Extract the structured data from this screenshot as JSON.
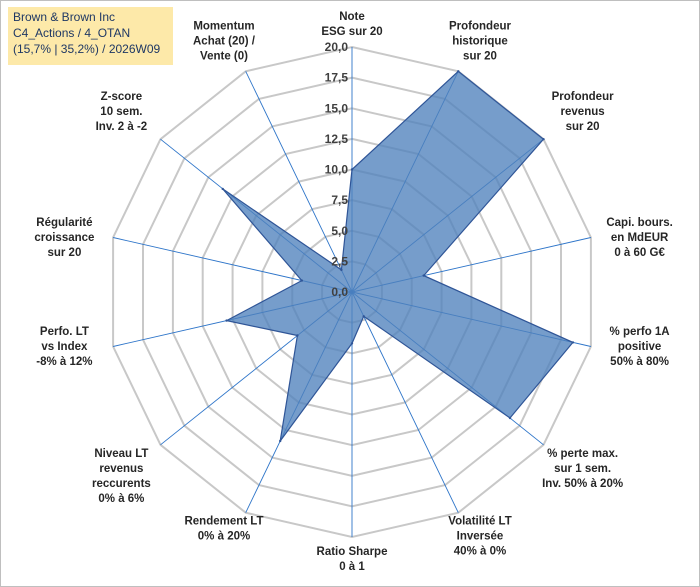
{
  "title_box": {
    "line1": "Brown & Brown Inc",
    "line2": "C4_Actions / 4_OTAN",
    "line3": "(15,7% | 35,2%) / 2026W09"
  },
  "chart_data": {
    "type": "radar",
    "rmax": 20,
    "ticks": [
      "0,0",
      "2,5",
      "5,0",
      "7,5",
      "10,0",
      "12,5",
      "15,0",
      "17,5",
      "20,0"
    ],
    "axes": [
      {
        "label": [
          "Note",
          "ESG sur 20"
        ],
        "value": 10
      },
      {
        "label": [
          "Profondeur",
          "historique",
          "sur 20"
        ],
        "value": 20
      },
      {
        "label": [
          "Profondeur",
          "revenus",
          "sur 20"
        ],
        "value": 20
      },
      {
        "label": [
          "Capi. bours.",
          "en MdEUR",
          "0 à 60 G€"
        ],
        "value": 6
      },
      {
        "label": [
          "% perfo 1A",
          "positive",
          "50% à 80%"
        ],
        "value": 18.5
      },
      {
        "label": [
          "% perte max.",
          "sur 1 sem.",
          "Inv. 50% à 20%"
        ],
        "value": 16.5
      },
      {
        "label": [
          "Volatilité LT",
          "Inversée",
          "40% à 0%"
        ],
        "value": 2.2
      },
      {
        "label": [
          "Ratio Sharpe",
          "0 à 1"
        ],
        "value": 4.2
      },
      {
        "label": [
          "Rendement LT",
          "0% à 20%"
        ],
        "value": 13.5
      },
      {
        "label": [
          "Niveau LT",
          "revenus",
          "reccurents",
          "0% à 6%"
        ],
        "value": 5.7
      },
      {
        "label": [
          "Perfo. LT",
          "vs Index",
          "-8% à 12%"
        ],
        "value": 10.5
      },
      {
        "label": [
          "Régularité",
          "croissance",
          "sur 20"
        ],
        "value": 4.2
      },
      {
        "label": [
          "Z-score",
          "10 sem.",
          "Inv. 2 à -2"
        ],
        "value": 13.5
      },
      {
        "label": [
          "Momentum",
          "Achat (20) /",
          "Vente (0)"
        ],
        "value": 2
      }
    ],
    "colors": {
      "fill": "#4f81bd",
      "stroke": "#2f5597",
      "grid": "#c8c8c8",
      "spoke": "#2e75c9"
    }
  }
}
